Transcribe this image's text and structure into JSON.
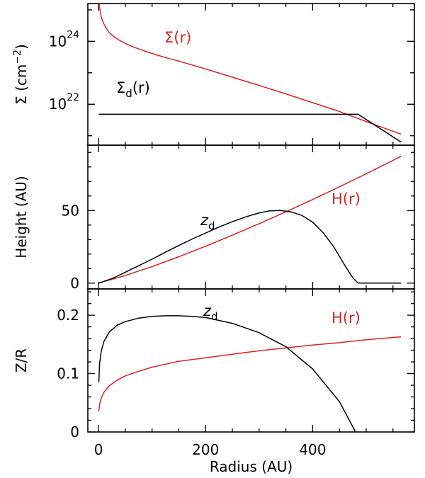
{
  "chart_data": [
    {
      "type": "line",
      "panel": "top",
      "ylabel": "Σ (cm",
      "ylabel_sup": "−2",
      "ylabel_end": ")",
      "xlim": [
        -20,
        590
      ],
      "ylim_log10": [
        20.7,
        25.2
      ],
      "yscale": "log",
      "y_ticks": [
        {
          "log10": 24,
          "base": "10",
          "exp": "24"
        },
        {
          "log10": 22,
          "base": "10",
          "exp": "22"
        }
      ],
      "series": [
        {
          "name": "Σ(r)",
          "color": "#dd2222",
          "x": [
            1,
            3,
            6,
            10,
            15,
            20,
            30,
            40,
            55,
            70,
            90,
            110,
            130,
            150,
            200,
            250,
            300,
            350,
            400,
            450,
            500,
            565
          ],
          "y_log10": [
            25.2,
            24.95,
            24.72,
            24.55,
            24.4,
            24.28,
            24.13,
            24.02,
            23.89,
            23.79,
            23.67,
            23.56,
            23.46,
            23.37,
            23.12,
            22.86,
            22.6,
            22.33,
            22.05,
            21.77,
            21.45,
            21.05
          ]
        },
        {
          "name": "Σd(r)",
          "color": "#000000",
          "x": [
            0,
            485,
            565
          ],
          "y_log10": [
            21.68,
            21.68,
            20.8
          ]
        }
      ],
      "annotations": [
        {
          "text": "Σ(r)",
          "color": "#dd2222"
        },
        {
          "text": "Σ",
          "sub": "d",
          "after": "(r)",
          "color": "#000000"
        }
      ]
    },
    {
      "type": "line",
      "panel": "middle",
      "ylabel": "Height (AU)",
      "xlim": [
        -20,
        590
      ],
      "ylim": [
        -4,
        95
      ],
      "y_ticks": [
        0,
        50
      ],
      "series": [
        {
          "name": "H(r)",
          "color": "#dd2222",
          "x": [
            0,
            50,
            100,
            150,
            200,
            250,
            300,
            350,
            400,
            450,
            500,
            565
          ],
          "y": [
            0,
            5.2,
            11.4,
            18.2,
            25.4,
            33.0,
            40.9,
            49.1,
            57.6,
            66.3,
            75.3,
            87.3
          ]
        },
        {
          "name": "zd",
          "color": "#000000",
          "x": [
            0,
            25,
            50,
            75,
            100,
            125,
            150,
            175,
            200,
            225,
            250,
            275,
            300,
            320,
            340,
            360,
            380,
            400,
            420,
            440,
            460,
            475,
            485,
            565
          ],
          "y": [
            0,
            3.1,
            7.5,
            12.0,
            16.5,
            21.3,
            25.9,
            30.4,
            34.5,
            38.6,
            42.3,
            45.6,
            48.4,
            49.8,
            50.0,
            49.0,
            46.6,
            42.0,
            34.6,
            24.7,
            12.2,
            3.6,
            0,
            0
          ]
        }
      ],
      "annotations": [
        {
          "text": "H(r)",
          "color": "#dd2222"
        },
        {
          "text": "z",
          "sub": "d",
          "color": "#000000"
        }
      ]
    },
    {
      "type": "line",
      "panel": "bottom",
      "ylabel": "Z/R",
      "xlabel": "Radius (AU)",
      "xlim": [
        -20,
        590
      ],
      "ylim": [
        0,
        0.245
      ],
      "x_ticks": [
        0,
        200,
        400
      ],
      "y_ticks": [
        0,
        0.1,
        0.2
      ],
      "series": [
        {
          "name": "H(r)",
          "color": "#dd2222",
          "x": [
            0.5,
            2,
            5,
            10,
            20,
            35,
            50,
            75,
            100,
            150,
            200,
            250,
            300,
            350,
            400,
            450,
            500,
            565
          ],
          "y": [
            0.035,
            0.047,
            0.058,
            0.068,
            0.079,
            0.089,
            0.096,
            0.104,
            0.111,
            0.121,
            0.127,
            0.133,
            0.139,
            0.144,
            0.149,
            0.153,
            0.158,
            0.163
          ]
        },
        {
          "name": "zd",
          "color": "#000000",
          "x": [
            0.5,
            2,
            5,
            10,
            20,
            35,
            50,
            75,
            100,
            125,
            150,
            175,
            200,
            250,
            300,
            350,
            400,
            450,
            480
          ],
          "y": [
            0.085,
            0.117,
            0.138,
            0.155,
            0.171,
            0.183,
            0.189,
            0.195,
            0.198,
            0.199,
            0.199,
            0.198,
            0.196,
            0.186,
            0.17,
            0.146,
            0.108,
            0.052,
            0.0
          ]
        }
      ],
      "annotations": [
        {
          "text": "H(r)",
          "color": "#dd2222"
        },
        {
          "text": "z",
          "sub": "d",
          "color": "#000000"
        }
      ]
    }
  ]
}
